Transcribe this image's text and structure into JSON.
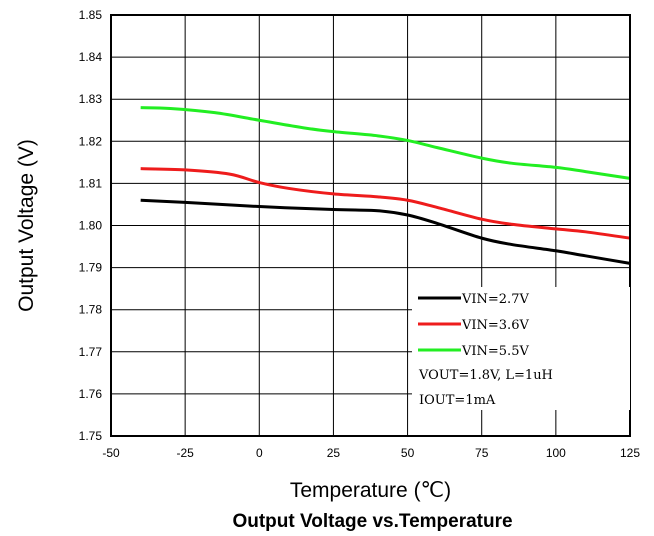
{
  "chart_data": {
    "type": "line",
    "title": "Output Voltage vs.Temperature",
    "xlabel": "Temperature (℃)",
    "ylabel": "Output Voltage (V)",
    "xlim": [
      -50,
      125
    ],
    "ylim": [
      1.75,
      1.85
    ],
    "x_ticks": [
      "-50",
      "-25",
      "0",
      "25",
      "50",
      "75",
      "100",
      "125"
    ],
    "y_ticks": [
      "1.75",
      "1.76",
      "1.77",
      "1.78",
      "1.79",
      "1.80",
      "1.81",
      "1.82",
      "1.83",
      "1.84",
      "1.85"
    ],
    "grid": true,
    "legend_position": "bottom-right",
    "series": [
      {
        "name": "VIN=2.7V",
        "color": "#000000",
        "x": [
          -40,
          -25,
          0,
          25,
          40,
          50,
          60,
          75,
          85,
          100,
          110,
          125
        ],
        "y": [
          1.806,
          1.8055,
          1.8045,
          1.8038,
          1.8035,
          1.8025,
          1.8005,
          1.797,
          1.7955,
          1.794,
          1.7928,
          1.791
        ]
      },
      {
        "name": "VIN=3.6V",
        "color": "#ee1c1c",
        "x": [
          -40,
          -25,
          -10,
          0,
          10,
          25,
          40,
          50,
          60,
          75,
          85,
          100,
          110,
          125
        ],
        "y": [
          1.8135,
          1.8132,
          1.8122,
          1.8102,
          1.8088,
          1.8075,
          1.8068,
          1.806,
          1.8043,
          1.8015,
          1.8003,
          1.7992,
          1.7985,
          1.797
        ]
      },
      {
        "name": "VIN=5.5V",
        "color": "#22ee22",
        "x": [
          -40,
          -30,
          -15,
          0,
          15,
          25,
          40,
          50,
          60,
          75,
          85,
          100,
          110,
          125
        ],
        "y": [
          1.828,
          1.8278,
          1.8268,
          1.825,
          1.8232,
          1.8223,
          1.8213,
          1.8202,
          1.8185,
          1.816,
          1.8148,
          1.8138,
          1.8128,
          1.8112
        ]
      }
    ],
    "annotations": [
      "VOUT=1.8V, L=1uH",
      "IOUT=1mA"
    ]
  }
}
